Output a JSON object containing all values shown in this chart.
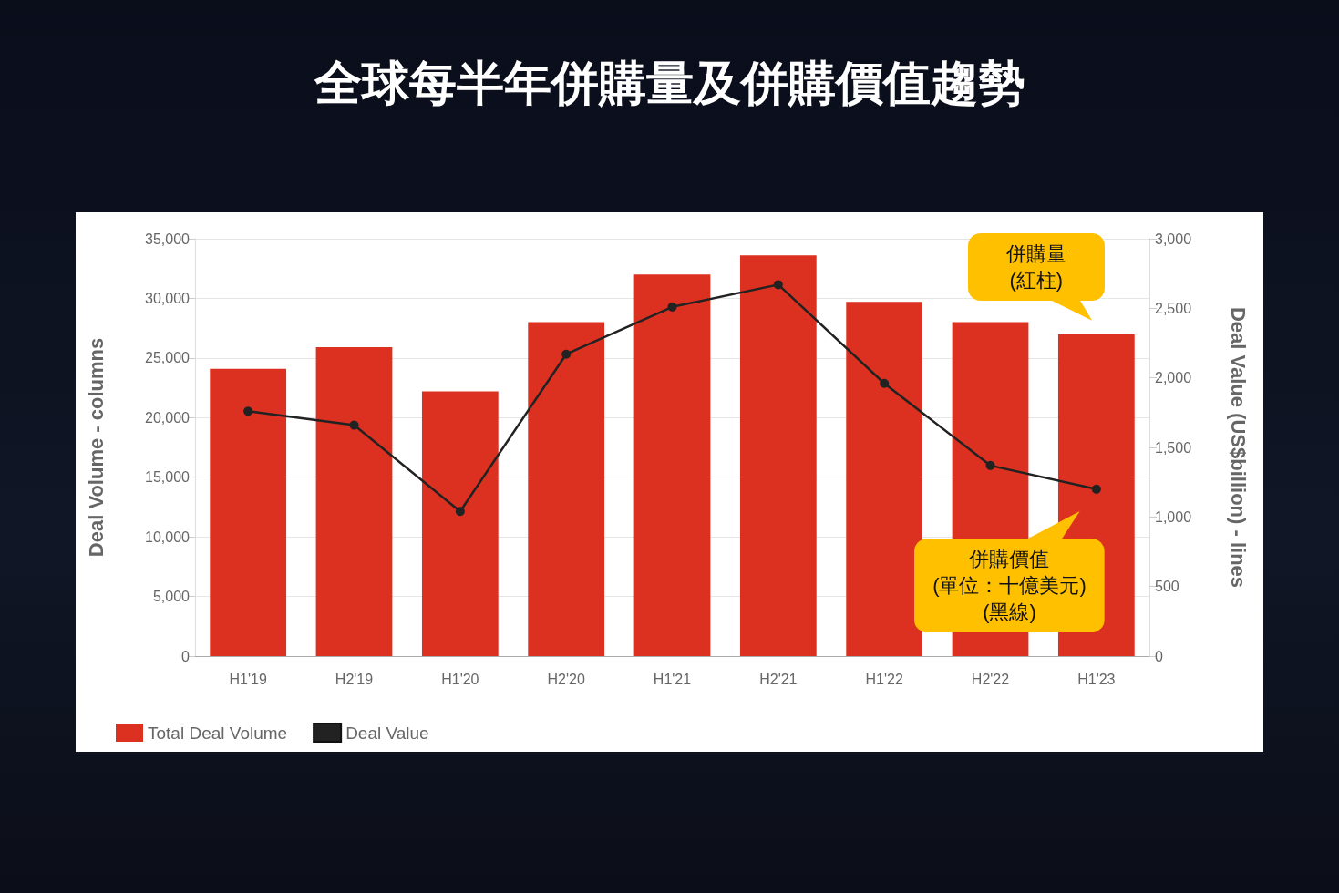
{
  "chart_data": {
    "type": "bar",
    "title": "全球每半年併購量及併購價值趨勢",
    "ylabel": "Deal Volume - columns",
    "y2label": "Deal Value (US$billion) - lines",
    "categories": [
      "H1'19",
      "H2'19",
      "H1'20",
      "H2'20",
      "H1'21",
      "H2'21",
      "H1'22",
      "H2'22",
      "H1'23"
    ],
    "series": [
      {
        "name": "Total Deal Volume",
        "color": "#dc3120",
        "values": [
          24100,
          25900,
          22200,
          28000,
          32000,
          33600,
          29700,
          28000,
          27000
        ]
      },
      {
        "name": "Deal Value",
        "type": "line",
        "axis": "y2",
        "color": "#222222",
        "values": [
          1760,
          1660,
          1040,
          2170,
          2510,
          2670,
          1960,
          1370,
          1200
        ]
      }
    ],
    "ylim": [
      0,
      35000
    ],
    "yticks": [
      0,
      {
        "value": 5000,
        "label": "5,000"
      },
      {
        "value": 10000,
        "label": "10,000"
      },
      {
        "value": 15000,
        "label": "15,000"
      },
      {
        "value": 20000,
        "label": "20,000"
      },
      {
        "value": 25000,
        "label": "25,000"
      },
      {
        "value": 30000,
        "label": "30,000"
      },
      {
        "value": 35000,
        "label": "35,000"
      }
    ],
    "y2lim": [
      0,
      3000
    ],
    "y2ticks": [
      0,
      500,
      {
        "value": 1000,
        "label": "1,000"
      },
      {
        "value": 1500,
        "label": "1,500"
      },
      {
        "value": 2000,
        "label": "2,000"
      },
      {
        "value": 2500,
        "label": "2,500"
      },
      {
        "value": 3000,
        "label": "3,000"
      }
    ],
    "grid": "y",
    "legend": "bottom left",
    "marker": "circle",
    "annotations": [
      "併購量\n(紅柱)",
      "併購價值\n(單位：十億美元)\n(黑線)"
    ]
  }
}
